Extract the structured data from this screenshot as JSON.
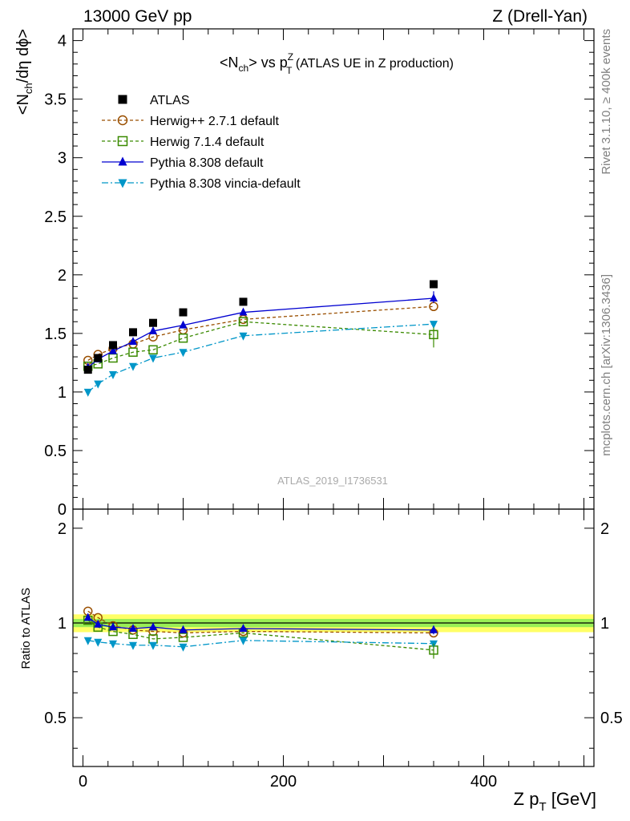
{
  "header": {
    "left": "13000 GeV pp",
    "right": "Z (Drell-Yan)"
  },
  "side_labels": {
    "rivet": "Rivet 3.1.10, ≥ 400k events",
    "mcplots": "mcplots.cern.ch [arXiv:1306.3436]"
  },
  "chart_data": {
    "type": "line",
    "title": {
      "pre": "<N",
      "sub1": "ch",
      "mid": "> vs p",
      "sup": "Z",
      "sub2": "T",
      "post": " (ATLAS UE in Z production)"
    },
    "analysis_id": "ATLAS_2019_I1736531",
    "x": [
      5,
      15,
      30,
      50,
      70,
      100,
      160,
      350
    ],
    "xlim": [
      -10,
      510
    ],
    "xticks": [
      0,
      200,
      400
    ],
    "xlabel": {
      "main": "Z p",
      "sub": "T",
      "post": " [GeV]"
    },
    "ylabel": {
      "pre": "<N",
      "sub": "ch",
      "post": "/dη dϕ>"
    },
    "ylim": [
      0,
      4.1
    ],
    "yticks": [
      "0",
      "0.5",
      "1",
      "1.5",
      "2",
      "2.5",
      "3",
      "3.5",
      "4"
    ],
    "ratio_ylabel": "Ratio to ATLAS",
    "ratio_ylim": [
      0.35,
      2.3
    ],
    "ratio_yticks": [
      "0.5",
      "1",
      "2"
    ],
    "series": [
      {
        "name": "ATLAS",
        "color": "#000000",
        "marker": "square-filled",
        "line": "none",
        "values": [
          1.19,
          1.29,
          1.4,
          1.51,
          1.59,
          1.68,
          1.77,
          1.92
        ],
        "ratio": [
          1.0,
          1.0,
          1.0,
          1.0,
          1.0,
          1.0,
          1.0,
          1.0
        ]
      },
      {
        "name": "Herwig++ 2.7.1 default",
        "color": "#9a4f00",
        "marker": "circle-open",
        "line": "dashed",
        "values": [
          1.27,
          1.32,
          1.37,
          1.41,
          1.47,
          1.53,
          1.62,
          1.73
        ],
        "ratio": [
          1.09,
          1.04,
          0.98,
          0.95,
          0.94,
          0.93,
          0.94,
          0.93
        ]
      },
      {
        "name": "Herwig 7.1.4 default",
        "color": "#3a8a00",
        "marker": "square-open",
        "line": "dashed",
        "values": [
          1.22,
          1.24,
          1.29,
          1.34,
          1.36,
          1.46,
          1.6,
          1.49
        ],
        "ratio": [
          1.02,
          0.97,
          0.94,
          0.92,
          0.89,
          0.9,
          0.93,
          0.82
        ]
      },
      {
        "name": "Pythia 8.308 default",
        "color": "#0000d0",
        "marker": "triangle-up-filled",
        "line": "solid",
        "values": [
          1.21,
          1.28,
          1.35,
          1.43,
          1.52,
          1.57,
          1.68,
          1.8
        ],
        "ratio": [
          1.04,
          0.99,
          0.97,
          0.96,
          0.97,
          0.95,
          0.96,
          0.95
        ]
      },
      {
        "name": "Pythia 8.308 vincia-default",
        "color": "#0096c8",
        "marker": "triangle-down-filled",
        "line": "dashdot",
        "values": [
          1.0,
          1.07,
          1.15,
          1.22,
          1.29,
          1.34,
          1.48,
          1.58
        ],
        "ratio": [
          0.88,
          0.87,
          0.86,
          0.85,
          0.85,
          0.84,
          0.88,
          0.86
        ]
      }
    ]
  }
}
